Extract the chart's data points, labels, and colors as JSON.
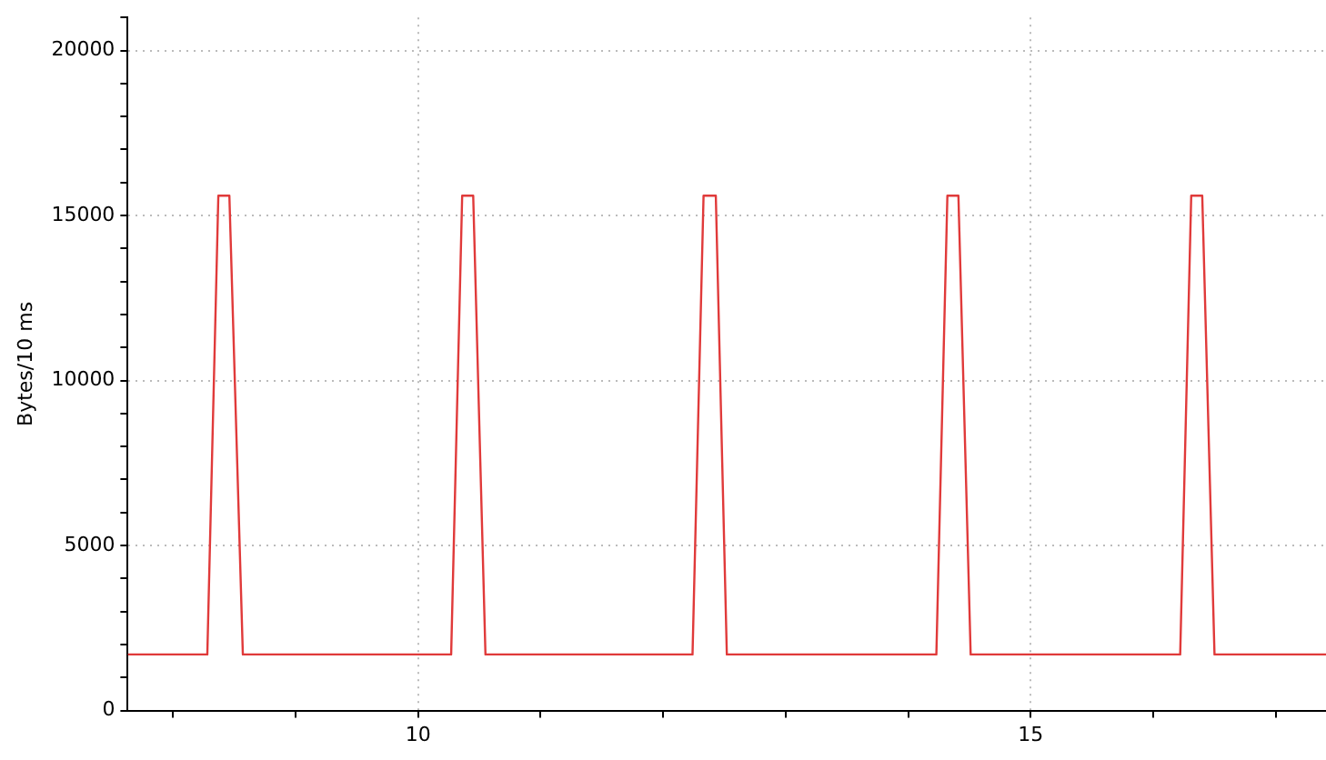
{
  "chart_data": {
    "type": "line",
    "ylabel": "Bytes/10 ms",
    "grid": true,
    "marker": "none",
    "line_style": "solid",
    "legend": false,
    "xlim": [
      7.63,
      17.41
    ],
    "ylim": [
      0,
      21000
    ],
    "xticks": [
      {
        "value": 8,
        "label": null
      },
      {
        "value": 9,
        "label": null
      },
      10,
      {
        "value": 11,
        "label": null
      },
      {
        "value": 12,
        "label": null
      },
      {
        "value": 13,
        "label": null
      },
      {
        "value": 14,
        "label": null
      },
      15,
      {
        "value": 16,
        "label": null
      },
      {
        "value": 17,
        "label": null
      }
    ],
    "yticks": [
      0,
      {
        "value": 1000,
        "label": null
      },
      {
        "value": 2000,
        "label": null
      },
      {
        "value": 3000,
        "label": null
      },
      {
        "value": 4000,
        "label": null
      },
      5000,
      {
        "value": 6000,
        "label": null
      },
      {
        "value": 7000,
        "label": null
      },
      {
        "value": 8000,
        "label": null
      },
      {
        "value": 9000,
        "label": null
      },
      10000,
      {
        "value": 11000,
        "label": null
      },
      {
        "value": 12000,
        "label": null
      },
      {
        "value": 13000,
        "label": null
      },
      {
        "value": 14000,
        "label": null
      },
      15000,
      {
        "value": 16000,
        "label": null
      },
      {
        "value": 17000,
        "label": null
      },
      {
        "value": 18000,
        "label": null
      },
      {
        "value": 19000,
        "label": null
      },
      20000,
      {
        "value": 21000,
        "label": null
      }
    ],
    "series": [
      {
        "color": "#e03a3a",
        "x": [
          7.63,
          8.28,
          8.37,
          8.46,
          8.57,
          10.27,
          10.36,
          10.45,
          10.55,
          12.24,
          12.33,
          12.43,
          12.52,
          14.23,
          14.32,
          14.41,
          14.51,
          16.22,
          16.31,
          16.4,
          16.5,
          17.41
        ],
        "values": [
          1700,
          1700,
          15600,
          15600,
          1700,
          1700,
          15600,
          15600,
          1700,
          1700,
          15600,
          15600,
          1700,
          1700,
          15600,
          15600,
          1700,
          1700,
          15600,
          15600,
          1700,
          1700
        ]
      }
    ]
  }
}
